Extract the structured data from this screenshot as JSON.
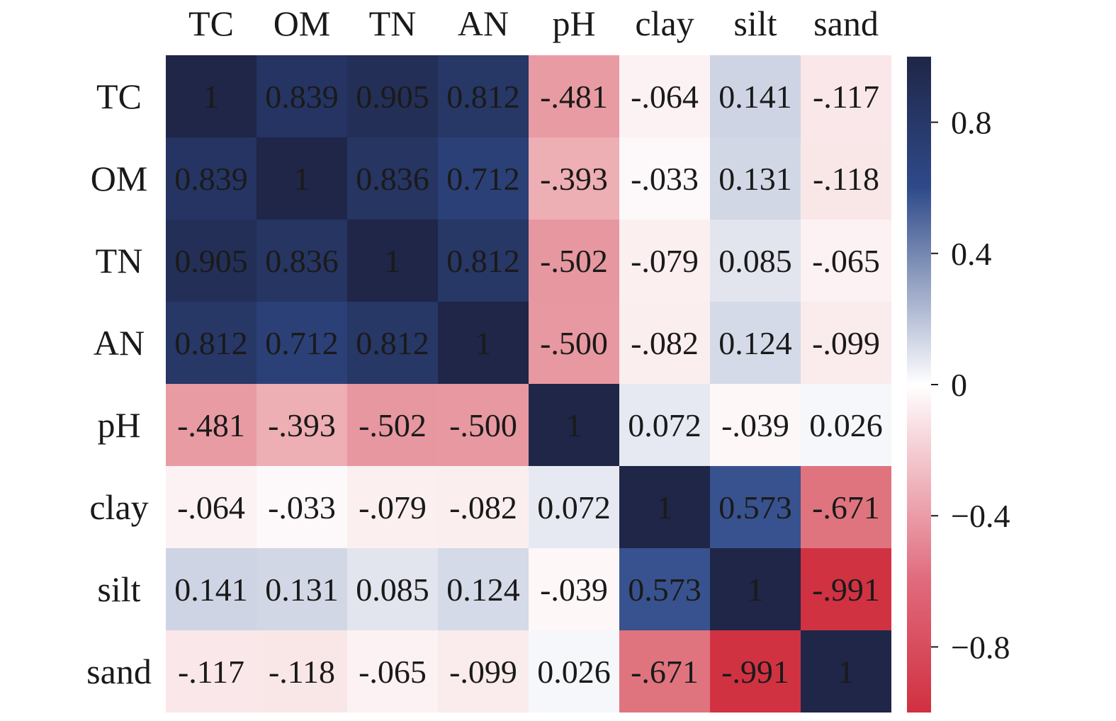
{
  "chart_data": {
    "type": "heatmap",
    "title": "",
    "xlabel": "",
    "ylabel": "",
    "x_labels": [
      "TC",
      "OM",
      "TN",
      "AN",
      "pH",
      "clay",
      "silt",
      "sand"
    ],
    "y_labels": [
      "TC",
      "OM",
      "TN",
      "AN",
      "pH",
      "clay",
      "silt",
      "sand"
    ],
    "values": [
      [
        1,
        0.839,
        0.905,
        0.812,
        -0.481,
        -0.064,
        0.141,
        -0.117
      ],
      [
        0.839,
        1,
        0.836,
        0.712,
        -0.393,
        -0.033,
        0.131,
        -0.118
      ],
      [
        0.905,
        0.836,
        1,
        0.812,
        -0.502,
        -0.079,
        0.085,
        -0.065
      ],
      [
        0.812,
        0.712,
        0.812,
        1,
        -0.5,
        -0.082,
        0.124,
        -0.099
      ],
      [
        -0.481,
        -0.393,
        -0.502,
        -0.5,
        1,
        0.072,
        -0.039,
        0.026
      ],
      [
        -0.064,
        -0.033,
        -0.079,
        -0.082,
        0.072,
        1,
        0.573,
        -0.671
      ],
      [
        0.141,
        0.131,
        0.085,
        0.124,
        -0.039,
        0.573,
        1,
        -0.991
      ],
      [
        -0.117,
        -0.118,
        -0.065,
        -0.099,
        0.026,
        -0.671,
        -0.991,
        1
      ]
    ],
    "cell_labels": [
      [
        "1",
        "0.839",
        "0.905",
        "0.812",
        "-.481",
        "-.064",
        "0.141",
        "-.117"
      ],
      [
        "0.839",
        "1",
        "0.836",
        "0.712",
        "-.393",
        "-.033",
        "0.131",
        "-.118"
      ],
      [
        "0.905",
        "0.836",
        "1",
        "0.812",
        "-.502",
        "-.079",
        "0.085",
        "-.065"
      ],
      [
        "0.812",
        "0.712",
        "0.812",
        "1",
        "-.500",
        "-.082",
        "0.124",
        "-.099"
      ],
      [
        "-.481",
        "-.393",
        "-.502",
        "-.500",
        "1",
        "0.072",
        "-.039",
        "0.026"
      ],
      [
        "-.064",
        "-.033",
        "-.079",
        "-.082",
        "0.072",
        "1",
        "0.573",
        "-.671"
      ],
      [
        "0.141",
        "0.131",
        "0.085",
        "0.124",
        "-.039",
        "0.573",
        "1",
        "-.991"
      ],
      [
        "-.117",
        "-.118",
        "-.065",
        "-.099",
        "0.026",
        "-.671",
        "-.991",
        "1"
      ]
    ],
    "colorbar": {
      "range": [
        -1,
        1
      ],
      "ticks": [
        0.8,
        0.4,
        0,
        -0.4,
        -0.8
      ],
      "tick_labels": [
        "0.8",
        "0.4",
        "0",
        "−0.4",
        "−0.8"
      ]
    },
    "colors": {
      "neg": "#d03040",
      "mid": "#ffffff",
      "pos": "#2f4a8a",
      "max": "#1f2647"
    },
    "x_axis_position": "top",
    "legend": "colorbar-right"
  }
}
